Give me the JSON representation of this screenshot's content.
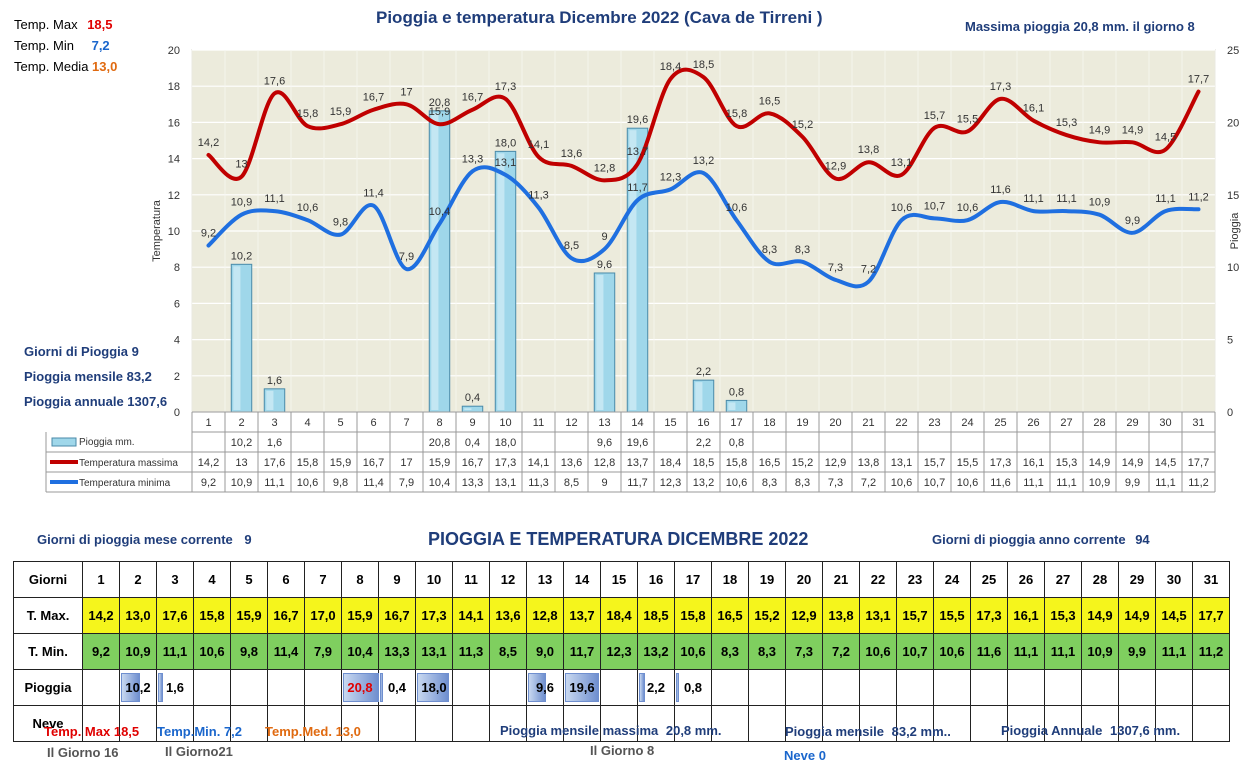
{
  "chart_title": "Pioggia e temperatura Dicembre 2022 (Cava de Tirreni )",
  "top_stats": {
    "max_label": "Temp. Max",
    "max_value": "18,5",
    "min_label": "Temp. Min",
    "min_value": "7,2",
    "media_label": "Temp. Media",
    "media_value": "13,0"
  },
  "max_rain_note": "Massima pioggia  20,8 mm. il giorno  8",
  "left_stats": {
    "giorni": "Giorni di Pioggia  9",
    "mensile": "Pioggia mensile  83,2",
    "annuale": "Pioggia annuale  1307,6"
  },
  "legend": {
    "rain": "Pioggia mm.",
    "max": "Temperatura massima",
    "min": "Temperatura minima"
  },
  "chart_data": {
    "type": "line",
    "title": "Pioggia e temperatura Dicembre 2022 (Cava de Tirreni )",
    "ylabel": "Temperatura",
    "y2label": "Pioggia",
    "ylim": [
      0,
      20
    ],
    "y2lim": [
      0,
      25
    ],
    "y_ticks": [
      0,
      2,
      4,
      6,
      8,
      10,
      12,
      14,
      16,
      18,
      20
    ],
    "y2_ticks": [
      0,
      5,
      10,
      15,
      20,
      25
    ],
    "x": [
      1,
      2,
      3,
      4,
      5,
      6,
      7,
      8,
      9,
      10,
      11,
      12,
      13,
      14,
      15,
      16,
      17,
      18,
      19,
      20,
      21,
      22,
      23,
      24,
      25,
      26,
      27,
      28,
      29,
      30,
      31
    ],
    "series": [
      {
        "name": "Pioggia mm.",
        "type": "bar",
        "axis": "right",
        "color": "#8fd0e6",
        "values": [
          null,
          10.2,
          1.6,
          null,
          null,
          null,
          null,
          20.8,
          0.4,
          18.0,
          null,
          null,
          9.6,
          19.6,
          null,
          2.2,
          0.8,
          null,
          null,
          null,
          null,
          null,
          null,
          null,
          null,
          null,
          null,
          null,
          null,
          null,
          null
        ],
        "labels": [
          "",
          "10,2",
          "1,6",
          "",
          "",
          "",
          "",
          "20,8",
          "0,4",
          "18,0",
          "",
          "",
          "9,6",
          "19,6",
          "",
          "2,2",
          "0,8",
          "",
          "",
          "",
          "",
          "",
          "",
          "",
          "",
          "",
          "",
          "",
          "",
          "",
          ""
        ]
      },
      {
        "name": "Temperatura massima",
        "type": "line",
        "axis": "left",
        "color": "#c00000",
        "values": [
          14.2,
          13,
          17.6,
          15.8,
          15.9,
          16.7,
          17,
          15.9,
          16.7,
          17.3,
          14.1,
          13.6,
          12.8,
          13.7,
          18.4,
          18.5,
          15.8,
          16.5,
          15.2,
          12.9,
          13.8,
          13.1,
          15.7,
          15.5,
          17.3,
          16.1,
          15.3,
          14.9,
          14.9,
          14.5,
          17.7
        ],
        "labels": [
          "14,2",
          "13",
          "17,6",
          "15,8",
          "15,9",
          "16,7",
          "17",
          "15,9",
          "16,7",
          "17,3",
          "14,1",
          "13,6",
          "12,8",
          "13,7",
          "18,4",
          "18,5",
          "15,8",
          "16,5",
          "15,2",
          "12,9",
          "13,8",
          "13,1",
          "15,7",
          "15,5",
          "17,3",
          "16,1",
          "15,3",
          "14,9",
          "14,9",
          "14,5",
          "17,7"
        ]
      },
      {
        "name": "Temperatura minima",
        "type": "line",
        "axis": "left",
        "color": "#1f6fe0",
        "values": [
          9.2,
          10.9,
          11.1,
          10.6,
          9.8,
          11.4,
          7.9,
          10.4,
          13.3,
          13.1,
          11.3,
          8.5,
          9,
          11.7,
          12.3,
          13.2,
          10.6,
          8.3,
          8.3,
          7.3,
          7.2,
          10.6,
          10.7,
          10.6,
          11.6,
          11.1,
          11.1,
          10.9,
          9.9,
          11.1,
          11.2
        ],
        "labels": [
          "9,2",
          "10,9",
          "11,1",
          "10,6",
          "9,8",
          "11,4",
          "7,9",
          "10,4",
          "13,3",
          "13,1",
          "11,3",
          "8,5",
          "9",
          "11,7",
          "12,3",
          "13,2",
          "10,6",
          "8,3",
          "8,3",
          "7,3",
          "7,2",
          "10,6",
          "10,7",
          "10,6",
          "11,6",
          "11,1",
          "11,1",
          "10,9",
          "9,9",
          "11,1",
          "11,2"
        ]
      }
    ]
  },
  "bottom": {
    "title": "PIOGGIA E TEMPERATURA DICEMBRE 2022",
    "giorni_mese_label": "Giorni di pioggia mese corrente",
    "giorni_mese_value": "9",
    "giorni_anno_label": "Giorni di pioggia anno corrente",
    "giorni_anno_value": "94",
    "row_headers": [
      "Giorni",
      "T. Max.",
      "T. Min.",
      "Pioggia",
      "Neve"
    ],
    "days": [
      "1",
      "2",
      "3",
      "4",
      "5",
      "6",
      "7",
      "8",
      "9",
      "10",
      "11",
      "12",
      "13",
      "14",
      "15",
      "16",
      "17",
      "18",
      "19",
      "20",
      "21",
      "22",
      "23",
      "24",
      "25",
      "26",
      "27",
      "28",
      "29",
      "30",
      "31"
    ],
    "tmax": [
      "14,2",
      "13,0",
      "17,6",
      "15,8",
      "15,9",
      "16,7",
      "17,0",
      "15,9",
      "16,7",
      "17,3",
      "14,1",
      "13,6",
      "12,8",
      "13,7",
      "18,4",
      "18,5",
      "15,8",
      "16,5",
      "15,2",
      "12,9",
      "13,8",
      "13,1",
      "15,7",
      "15,5",
      "17,3",
      "16,1",
      "15,3",
      "14,9",
      "14,9",
      "14,5",
      "17,7"
    ],
    "tmin": [
      "9,2",
      "10,9",
      "11,1",
      "10,6",
      "9,8",
      "11,4",
      "7,9",
      "10,4",
      "13,3",
      "13,1",
      "11,3",
      "8,5",
      "9,0",
      "11,7",
      "12,3",
      "13,2",
      "10,6",
      "8,3",
      "8,3",
      "7,3",
      "7,2",
      "10,6",
      "10,7",
      "10,6",
      "11,6",
      "11,1",
      "11,1",
      "10,9",
      "9,9",
      "11,1",
      "11,2"
    ],
    "rain": [
      "",
      "10,2",
      "1,6",
      "",
      "",
      "",
      "",
      "20,8",
      "0,4",
      "18,0",
      "",
      "",
      "9,6",
      "19,6",
      "",
      "2,2",
      "0,8",
      "",
      "",
      "",
      "",
      "",
      "",
      "",
      "",
      "",
      "",
      "",
      "",
      "",
      ""
    ],
    "rain_fill": [
      0,
      0.49,
      0.08,
      0,
      0,
      0,
      0,
      1.0,
      0.02,
      0.87,
      0,
      0,
      0.46,
      0.94,
      0,
      0.11,
      0.04,
      0,
      0,
      0,
      0,
      0,
      0,
      0,
      0,
      0,
      0,
      0,
      0,
      0,
      0
    ],
    "footer": {
      "tmax_label": "Temp. Max",
      "tmax_value": "18,5",
      "tmax_day": "Il Giorno  16",
      "tmin_label": "Temp.Min.",
      "tmin_value": "7,2",
      "tmin_day": "Il Giorno21",
      "tmed_label": "Temp.Med.",
      "tmed_value": "13,0",
      "pmax_label": "Pioggia mensile massima",
      "pmax_value": "20,8  mm.",
      "pmax_day": "Il Giorno  8",
      "pmens_label": "Pioggia mensile",
      "pmens_value": "83,2  mm..",
      "pann_label": "Pioggia Annuale",
      "pann_value": "1307,6 mm.",
      "neve": "Neve 0"
    }
  }
}
